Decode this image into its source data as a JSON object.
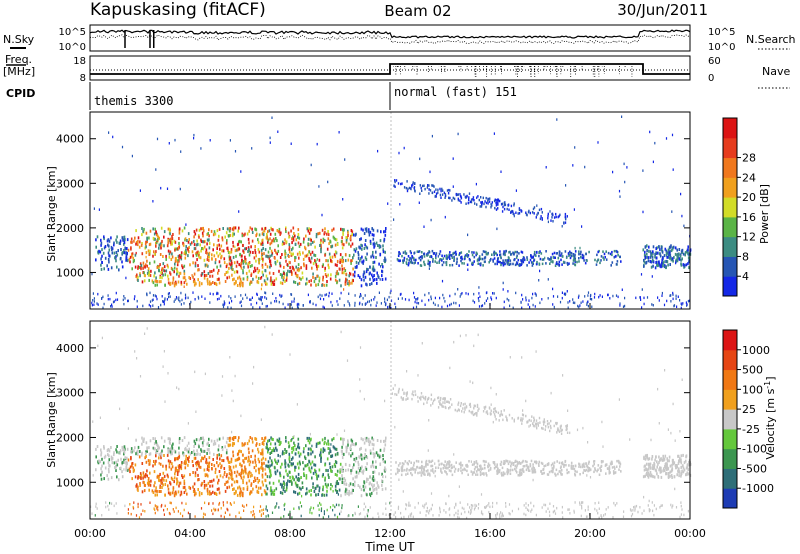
{
  "header": {
    "station": "Kapuskasing (fitACF)",
    "beam": "Beam 02",
    "date": "30/Jun/2011"
  },
  "noise_panel": {
    "left_label": "N.Sky",
    "right_label": "N.Search",
    "left_ticks": [
      "10^5",
      "10^0"
    ],
    "right_ticks": [
      "10^5",
      "10^0"
    ]
  },
  "freq_panel": {
    "left_label_line1": "Freq.",
    "left_label_line2": "[MHz]",
    "right_label": "Nave",
    "left_ticks": [
      "18",
      "8"
    ],
    "right_ticks": [
      "60",
      "0"
    ]
  },
  "cpid": {
    "label": "CPID",
    "modes": [
      {
        "name": "themis 3300",
        "start_hour": 0
      },
      {
        "name": "normal (fast) 151",
        "start_hour": 12
      }
    ]
  },
  "chart_data": [
    {
      "type": "heatmap",
      "panel": "power",
      "ylabel": "Slant Range [km]",
      "ylim": [
        180,
        4600
      ],
      "yticks": [
        "1000",
        "2000",
        "3000",
        "4000"
      ],
      "xlim_hours": [
        0,
        24
      ],
      "colorbar_label": "Power [dB]",
      "colorbar_ticks": [
        "4",
        "8",
        "12",
        "16",
        "20",
        "24",
        "28"
      ],
      "colorbar_colors": [
        "#1428e6",
        "#2656b4",
        "#3c8c82",
        "#5ab446",
        "#d2dc28",
        "#f0a01e",
        "#f0781e",
        "#e63c1e",
        "#dc1414"
      ]
    },
    {
      "type": "heatmap",
      "panel": "velocity",
      "ylabel": "Slant Range [km]",
      "ylim": [
        180,
        4600
      ],
      "yticks": [
        "1000",
        "2000",
        "3000",
        "4000"
      ],
      "xlim_hours": [
        0,
        24
      ],
      "xlabel": "Time UT",
      "xticks": [
        "00:00",
        "04:00",
        "08:00",
        "12:00",
        "16:00",
        "20:00",
        "00:00"
      ],
      "colorbar_label": "Velocity [m s",
      "colorbar_label_sup": "-1",
      "colorbar_label_end": "]",
      "colorbar_ticks": [
        "1000",
        "500",
        "100",
        "25",
        "-25",
        "-100",
        "-500",
        "-1000"
      ],
      "colorbar_colors": [
        "#1e3cb4",
        "#2e6e78",
        "#3c9650",
        "#64c83c",
        "#c8c8c8",
        "#f0a01e",
        "#f07814",
        "#e64614",
        "#dc1414"
      ]
    }
  ]
}
